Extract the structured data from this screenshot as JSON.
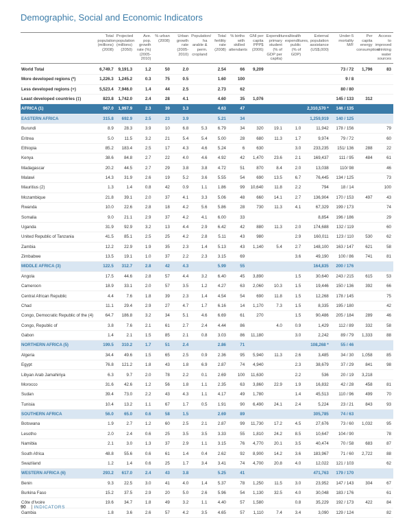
{
  "page_title": "Demographic, Social and Economic Indicators",
  "footer_page": "90",
  "footer_section": "INDICATORS",
  "columns": [
    "",
    "Total population (millions) (2008)",
    "Projected population (millions) (2050)",
    "Ave. pop. growth rate (%) (2005-2010)",
    "% urban (2008)",
    "Urban growth rate (2005-2010)",
    "Population/ ha arable & perm. cropland",
    "Total fertility rate (2008)",
    "% births with skilled attendants",
    "GNI per capita PPP$ (2006)",
    "Expenditures/ primary student (% of GDP per capita)",
    "Health expenditures, public (% of GDP)",
    "External population assistance (US$,000)",
    "Under-5 mortality M/F",
    "Per capita energy consumption",
    "Access to improved drinking water sources"
  ],
  "row_styles": {
    "World Total": "hdr-world",
    "More developed regions (*)": "hdr-bold",
    "Less developed regions (+)": "hdr-bold",
    "Least developed countries (‡)": "hdr-bold",
    "AFRICA (1)": "hdr-africa",
    "EASTERN AFRICA": "hdr-sub",
    "MIDDLE AFRICA (3)": "hdr-sub",
    "NORTHERN AFRICA (5)": "hdr-sub",
    "SOUTHERN AFRICA": "hdr-sub",
    "WESTERN AFRICA (6)": "hdr-sub"
  },
  "rows": [
    [
      "World Total",
      "6,749.7",
      "9,191.3",
      "1.2",
      "50",
      "2.0",
      "",
      "2.54",
      "66",
      "9,209",
      "",
      "",
      "",
      "73 / 72",
      "1,796",
      "83"
    ],
    [
      "More developed regions (*)",
      "1,226.3",
      "1,245.2",
      "0.3",
      "75",
      "0.5",
      "",
      "1.60",
      "100",
      "",
      "",
      "",
      "",
      "9 / 8",
      "",
      ""
    ],
    [
      "Less developed regions (+)",
      "5,523.4",
      "7,946.0",
      "1.4",
      "44",
      "2.5",
      "",
      "2.73",
      "62",
      "",
      "",
      "",
      "",
      "80 / 80",
      "",
      ""
    ],
    [
      "Least developed countries (‡)",
      "823.8",
      "1,742.0",
      "2.4",
      "28",
      "4.1",
      "",
      "4.60",
      "35",
      "1,076",
      "",
      "",
      "",
      "145 / 133",
      "312",
      ""
    ],
    [
      "AFRICA (1)",
      "967.0",
      "1,997.9",
      "2.3",
      "39",
      "3.3",
      "",
      "4.63",
      "47",
      "",
      "",
      "",
      "2,310,570 *",
      "146 / 135",
      "",
      ""
    ],
    [
      "EASTERN AFRICA",
      "315.8",
      "692.9",
      "2.5",
      "23",
      "3.9",
      "",
      "5.21",
      "34",
      "",
      "",
      "",
      "1,259,919",
      "140 / 125",
      "",
      ""
    ],
    [
      "Burundi",
      "8.9",
      "28.3",
      "3.9",
      "10",
      "6.8",
      "5.3",
      "6.79",
      "34",
      "320",
      "19.1",
      "1.0",
      "11,942",
      "178 / 156",
      "",
      "79"
    ],
    [
      "Eritrea",
      "5.0",
      "11.5",
      "3.2",
      "21",
      "5.4",
      "5.4",
      "5.00",
      "28",
      "680",
      "11.3",
      "1.7",
      "9,974",
      "79 / 72",
      "",
      "60"
    ],
    [
      "Ethiopia",
      "85.2",
      "183.4",
      "2.5",
      "17",
      "4.3",
      "4.6",
      "5.24",
      "6",
      "630",
      "",
      "3.0",
      "233,235",
      "151/ 136",
      "288",
      "22"
    ],
    [
      "Kenya",
      "38.6",
      "84.8",
      "2.7",
      "22",
      "4.0",
      "4.6",
      "4.92",
      "42",
      "1,470",
      "23.6",
      "2.1",
      "169,437",
      "111 / 95",
      "484",
      "61"
    ],
    [
      "Madagascar",
      "20.2",
      "44.5",
      "2.7",
      "29",
      "3.8",
      "3.8",
      "4.72",
      "51",
      "870",
      "8.4",
      "2.0",
      "13,038",
      "110/ 98",
      "",
      "46"
    ],
    [
      "Malawi",
      "14.3",
      "31.9",
      "2.6",
      "19",
      "5.2",
      "3.6",
      "5.55",
      "54",
      "690",
      "13.5",
      "6.7",
      "76,445",
      "134 / 125",
      "",
      "73"
    ],
    [
      "Mauritius (2)",
      "1.3",
      "1.4",
      "0.8",
      "42",
      "0.9",
      "1.1",
      "1.86",
      "99",
      "10,640",
      "11.8",
      "2.2",
      "794",
      "18 / 14",
      "",
      "100"
    ],
    [
      "Mozambique",
      "21.8",
      "39.1",
      "2.0",
      "37",
      "4.1",
      "3.3",
      "5.06",
      "48",
      "660",
      "14.1",
      "2.7",
      "136,904",
      "170 / 153",
      "497",
      "43"
    ],
    [
      "Rwanda",
      "10.0",
      "22.6",
      "2.8",
      "18",
      "4.2",
      "5.6",
      "5.86",
      "28",
      "730",
      "11.3",
      "4.1",
      "67,329",
      "199 / 173",
      "",
      "74"
    ],
    [
      "Somalia",
      "9.0",
      "21.1",
      "2.9",
      "37",
      "4.2",
      "4.1",
      "6.00",
      "33",
      "",
      "",
      "",
      "8,854",
      "196 / 186",
      "",
      "29"
    ],
    [
      "Uganda",
      "31.9",
      "92.9",
      "3.2",
      "13",
      "4.4",
      "2.9",
      "6.42",
      "42",
      "880",
      "11.3",
      "2.0",
      "174,688",
      "132 / 119",
      "",
      "60"
    ],
    [
      "United Republic of Tanzania",
      "41.5",
      "85.1",
      "2.5",
      "25",
      "4.2",
      "2.8",
      "5.11",
      "43",
      "980",
      "",
      "2.9",
      "160,011",
      "123 / 110",
      "530",
      "62"
    ],
    [
      "Zambia",
      "12.2",
      "22.9",
      "1.9",
      "35",
      "2.3",
      "1.4",
      "5.13",
      "43",
      "1,140",
      "5.4",
      "2.7",
      "148,100",
      "163 / 147",
      "621",
      "58"
    ],
    [
      "Zimbabwe",
      "13.5",
      "19.1",
      "1.0",
      "37",
      "2.2",
      "2.3",
      "3.15",
      "69",
      "",
      "",
      "3.6",
      "49,190",
      "100 / 86",
      "741",
      "81"
    ],
    [
      "MIDDLE AFRICA (3)",
      "122.5",
      "312.7",
      "2.8",
      "42",
      "4.3",
      "",
      "5.99",
      "55",
      "",
      "",
      "",
      "164,835",
      "200 / 176",
      "",
      ""
    ],
    [
      "Angola",
      "17.5",
      "44.6",
      "2.8",
      "57",
      "4.4",
      "3.2",
      "6.40",
      "45",
      "3,890",
      "",
      "1.5",
      "30,640",
      "243 / 215",
      "615",
      "53"
    ],
    [
      "Cameroon",
      "18.9",
      "33.1",
      "2.0",
      "57",
      "3.5",
      "1.2",
      "4.27",
      "63",
      "2,060",
      "10.3",
      "1.5",
      "19,446",
      "150 / 136",
      "392",
      "66"
    ],
    [
      "Central African Republic",
      "4.4",
      "7.6",
      "1.8",
      "39",
      "2.3",
      "1.4",
      "4.54",
      "54",
      "690",
      "11.8",
      "1.5",
      "12,268",
      "178 / 145",
      "",
      "75"
    ],
    [
      "Chad",
      "11.1",
      "29.4",
      "2.9",
      "27",
      "4.7",
      "1.7",
      "6.16",
      "14",
      "1,170",
      "7.3",
      "1.5",
      "8,335",
      "195 / 180",
      "",
      "42"
    ],
    [
      "Congo, Democratic Republic of the (4)",
      "64.7",
      "186.8",
      "3.2",
      "34",
      "5.1",
      "4.6",
      "6.69",
      "61",
      "270",
      "",
      "1.5",
      "90,486",
      "205 / 184",
      "289",
      "46"
    ],
    [
      "Congo, Republic of",
      "3.8",
      "7.6",
      "2.1",
      "61",
      "2.7",
      "2.4",
      "4.44",
      "86",
      "",
      "4.0",
      "0.9",
      "1,429",
      "112 / 89",
      "332",
      "58"
    ],
    [
      "Gabon",
      "1.4",
      "2.1",
      "1.5",
      "85",
      "2.1",
      "0.8",
      "3.03",
      "86",
      "11,180",
      "",
      "3.0",
      "2,242",
      "89 / 79",
      "1,333",
      "88"
    ],
    [
      "NORTHERN AFRICA (5)",
      "199.5",
      "310.2",
      "1.7",
      "51",
      "2.4",
      "",
      "2.86",
      "71",
      "",
      "",
      "",
      "108,268 *",
      "55 / 46",
      "",
      ""
    ],
    [
      "Algeria",
      "34.4",
      "49.6",
      "1.5",
      "65",
      "2.5",
      "0.9",
      "2.36",
      "95",
      "5,940",
      "11.3",
      "2.6",
      "3,485",
      "34 / 30",
      "1,058",
      "85"
    ],
    [
      "Egypt",
      "76.8",
      "121.2",
      "1.8",
      "43",
      "1.8",
      "6.9",
      "2.87",
      "74",
      "4,940",
      "",
      "2.3",
      "38,679",
      "37 / 29",
      "841",
      "98"
    ],
    [
      "Libyan Arab Jamahiriya",
      "6.3",
      "9.7",
      "2.0",
      "78",
      "2.2",
      "0.1",
      "2.69",
      "100",
      "11,630",
      "",
      "2.2",
      "536",
      "20 / 19",
      "3,218",
      ""
    ],
    [
      "Morocco",
      "31.6",
      "42.6",
      "1.2",
      "56",
      "1.8",
      "1.1",
      "2.35",
      "63",
      "3,860",
      "22.9",
      "1.9",
      "16,832",
      "42 / 28",
      "458",
      "81"
    ],
    [
      "Sudan",
      "39.4",
      "73.0",
      "2.2",
      "43",
      "4.3",
      "1.1",
      "4.17",
      "49",
      "1,780",
      "",
      "1.4",
      "45,513",
      "110 / 96",
      "499",
      "70"
    ],
    [
      "Tunisia",
      "10.4",
      "13.2",
      "1.1",
      "67",
      "1.7",
      "0.5",
      "1.91",
      "90",
      "6,490",
      "24.1",
      "2.4",
      "5,224",
      "23 / 21",
      "843",
      "93"
    ],
    [
      "SOUTHERN AFRICA",
      "56.0",
      "65.0",
      "0.6",
      "58",
      "1.5",
      "",
      "2.69",
      "89",
      "",
      "",
      "",
      "305,785",
      "74 / 63",
      "",
      ""
    ],
    [
      "Botswana",
      "1.9",
      "2.7",
      "1.2",
      "60",
      "2.5",
      "2.1",
      "2.87",
      "99",
      "11,730",
      "17.2",
      "4.5",
      "27,676",
      "73 / 60",
      "1,032",
      "95"
    ],
    [
      "Lesotho",
      "2.0",
      "2.4",
      "0.6",
      "25",
      "3.5",
      "3.5",
      "3.33",
      "55",
      "1,810",
      "24.2",
      "8.5",
      "10,647",
      "104 / 90",
      "",
      "78"
    ],
    [
      "Namibia",
      "2.1",
      "3.0",
      "1.3",
      "37",
      "2.9",
      "1.1",
      "3.15",
      "76",
      "4,770",
      "20.1",
      "3.5",
      "40,474",
      "70 / 58",
      "683",
      "87"
    ],
    [
      "South Africa",
      "48.8",
      "55.6",
      "0.6",
      "61",
      "1.4",
      "0.4",
      "2.62",
      "92",
      "8,900",
      "14.2",
      "3.6",
      "183,967",
      "71 / 60",
      "2,722",
      "88"
    ],
    [
      "Swaziland",
      "1.2",
      "1.4",
      "0.6",
      "25",
      "1.7",
      "3.4",
      "3.41",
      "74",
      "4,700",
      "20.8",
      "4.0",
      "12,022",
      "121 / 103",
      "",
      "62"
    ],
    [
      "WESTERN AFRICA (6)",
      "293.2",
      "617.0",
      "2.4",
      "43",
      "3.8",
      "",
      "5.25",
      "41",
      "",
      "",
      "",
      "471,763",
      "179 / 170",
      "",
      ""
    ],
    [
      "Benin",
      "9.3",
      "22.5",
      "3.0",
      "41",
      "4.0",
      "1.4",
      "5.37",
      "78",
      "1,250",
      "11.5",
      "3.0",
      "23,952",
      "147 / 143",
      "304",
      "67"
    ],
    [
      "Burkina Faso",
      "15.2",
      "37.5",
      "2.9",
      "20",
      "5.0",
      "2.6",
      "5.96",
      "54",
      "1,130",
      "32.5",
      "4.0",
      "30,048",
      "183 / 176",
      "",
      "61"
    ],
    [
      "Côte d'Ivoire",
      "19.6",
      "34.7",
      "1.8",
      "49",
      "3.2",
      "1.1",
      "4.40",
      "57",
      "1,580",
      "",
      "0.8",
      "35,229",
      "192 / 173",
      "422",
      "84"
    ],
    [
      "Gambia",
      "1.8",
      "3.6",
      "2.6",
      "57",
      "4.2",
      "3.5",
      "4.65",
      "57",
      "1,110",
      "7.4",
      "3.4",
      "3,090",
      "129 / 124",
      "",
      "82"
    ]
  ]
}
